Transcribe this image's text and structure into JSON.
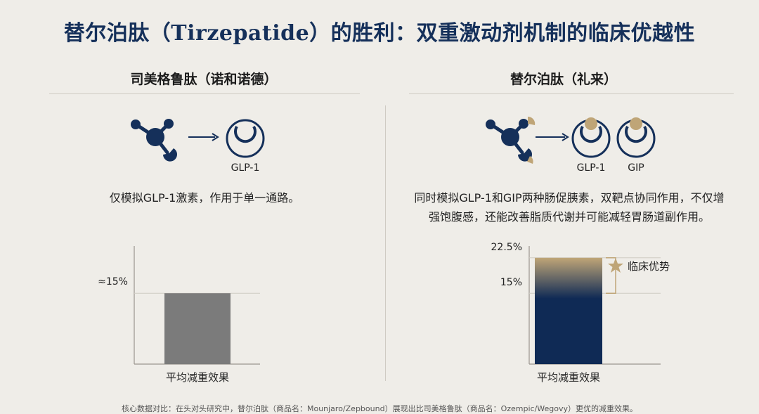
{
  "title": "替尔泊肽（Tirzepatide）的胜利：双重激动剂机制的临床优越性",
  "left_panel": {
    "heading": "司美格鲁肽（诺和诺德）",
    "receptor_labels": [
      "GLP-1"
    ],
    "description": "仅模拟GLP-1激素，作用于单一通路。",
    "icons": [
      "molecule-icon",
      "arrow-icon",
      "receptor-icon"
    ]
  },
  "right_panel": {
    "heading": "替尔泊肽（礼来）",
    "receptor_labels": [
      "GLP-1",
      "GIP"
    ],
    "description_lines": [
      "同时模拟GLP-1和GIP两种肠促胰素，双靶点协同作用，不仅增",
      "强饱腹感，还能改善脂质代谢并可能减轻胃肠道副作用。"
    ],
    "icons": [
      "molecule-icon",
      "arrow-icon",
      "receptor-icon",
      "receptor-icon"
    ],
    "advantage_label": "临床优势",
    "advantage_icon": "star-icon"
  },
  "chart_data": [
    {
      "type": "bar",
      "categories": [
        "平均减重效果"
      ],
      "values": [
        15
      ],
      "tick_labels": [
        "≈15%"
      ],
      "ylim": [
        0,
        25
      ],
      "colors": {
        "bar": "#7b7b7b"
      }
    },
    {
      "type": "bar",
      "categories": [
        "平均减重效果"
      ],
      "values": [
        22.5
      ],
      "tick_labels": [
        "22.5%",
        "15%"
      ],
      "ylim": [
        0,
        25
      ],
      "annotations": [
        {
          "text": "临床优势",
          "from": 15,
          "to": 22.5
        }
      ],
      "colors": {
        "bar": "#0f2a55",
        "highlight": "#bfa577"
      }
    }
  ],
  "footnote": "核心数据对比：在头对头研究中，替尔泊肽（商品名：Mounjaro/Zepbound）展现出比司美格鲁肽（商品名：Ozempic/Wegovy）更优的减重效果。",
  "colors": {
    "navy": "#15305a",
    "gold": "#bfa577",
    "background": "#efede8"
  }
}
